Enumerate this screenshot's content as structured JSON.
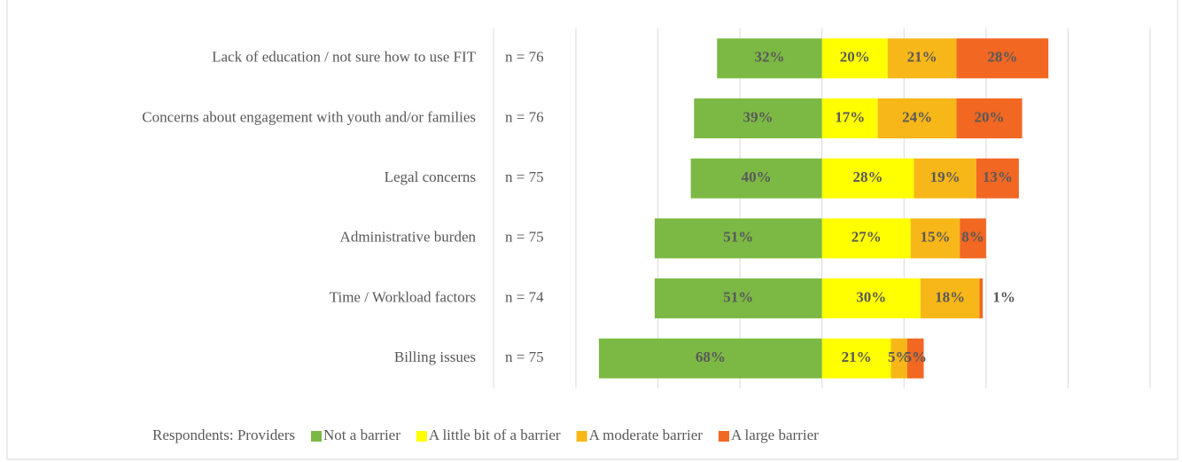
{
  "chart_data": {
    "type": "diverging-bar",
    "categories": [
      "Lack of education / not sure how to use FIT",
      "Concerns about engagement with youth and/or families",
      "Legal concerns",
      "Administrative burden",
      "Time / Workload factors",
      "Billing issues"
    ],
    "n_labels": [
      "n = 76",
      "n = 76",
      "n = 75",
      "n = 75",
      "n = 74",
      "n = 75"
    ],
    "series": [
      {
        "name": "Not a barrier",
        "color": "#7cb944",
        "values": [
          32,
          39,
          40,
          51,
          51,
          68
        ],
        "value_labels": [
          "32%",
          "39%",
          "40%",
          "51%",
          "51%",
          "68%"
        ]
      },
      {
        "name": "A little bit of a barrier",
        "color": "#ffff00",
        "values": [
          20,
          17,
          28,
          27,
          30,
          21
        ],
        "value_labels": [
          "20%",
          "17%",
          "28%",
          "27%",
          "30%",
          "21%"
        ]
      },
      {
        "name": "A moderate barrier",
        "color": "#f8b718",
        "values": [
          21,
          24,
          19,
          15,
          18,
          5
        ],
        "value_labels": [
          "21%",
          "24%",
          "19%",
          "15%",
          "18%",
          "5%"
        ]
      },
      {
        "name": "A large barrier",
        "color": "#f26722",
        "values": [
          28,
          20,
          13,
          8,
          1,
          5
        ],
        "value_labels": [
          "28%",
          "20%",
          "13%",
          "8%",
          "1%",
          "5%"
        ]
      }
    ],
    "diverging": true,
    "legend_title": "Respondents: Providers",
    "xlim": [
      -75,
      100
    ],
    "xticks": [
      -75,
      -50,
      -25,
      0,
      25,
      50,
      75,
      100
    ],
    "grid": true,
    "legend": "bottom"
  }
}
